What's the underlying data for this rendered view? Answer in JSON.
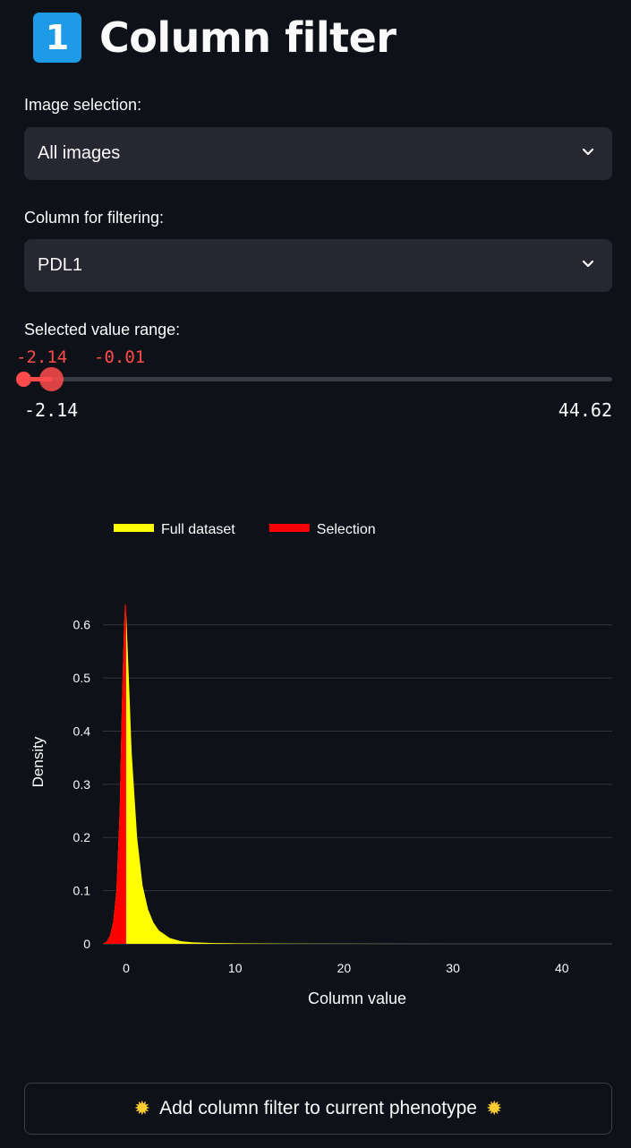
{
  "header": {
    "badge": "1",
    "title": "Column filter"
  },
  "image_selection": {
    "label": "Image selection:",
    "value": "All images"
  },
  "column_selection": {
    "label": "Column for filtering:",
    "value": "PDL1"
  },
  "range_slider": {
    "label": "Selected value range:",
    "low": -2.14,
    "high": -0.01,
    "low_label": "-2.14",
    "high_label": "-0.01",
    "min": -2.14,
    "max": 44.62,
    "min_label": "-2.14",
    "max_label": "44.62",
    "accent_color": "#ff4b4b"
  },
  "chart_data": {
    "type": "area",
    "xlabel": "Column value",
    "ylabel": "Density",
    "xlim": [
      -2.14,
      44.62
    ],
    "ylim": [
      0,
      0.65
    ],
    "xticks": [
      0,
      10,
      20,
      30,
      40
    ],
    "xtick_labels": [
      "0",
      "10",
      "20",
      "30",
      "40"
    ],
    "yticks": [
      0,
      0.1,
      0.2,
      0.3,
      0.4,
      0.5,
      0.6
    ],
    "ytick_labels": [
      "0",
      "0.1",
      "0.2",
      "0.3",
      "0.4",
      "0.5",
      "0.6"
    ],
    "grid": true,
    "legend_position": "top-left",
    "series": [
      {
        "name": "Full dataset",
        "color": "#ffff00",
        "x": [
          -2.14,
          -1.8,
          -1.5,
          -1.2,
          -0.9,
          -0.6,
          -0.4,
          -0.2,
          -0.1,
          0.0,
          0.2,
          0.5,
          1.0,
          1.5,
          2.0,
          2.5,
          3.0,
          4.0,
          5.0,
          6.0,
          8.0,
          10.0,
          15.0,
          20.0,
          30.0,
          44.62
        ],
        "values": [
          0,
          0.004,
          0.015,
          0.04,
          0.1,
          0.25,
          0.45,
          0.6,
          0.64,
          0.62,
          0.52,
          0.36,
          0.2,
          0.11,
          0.065,
          0.04,
          0.025,
          0.011,
          0.005,
          0.003,
          0.0015,
          0.001,
          0.0005,
          0.0002,
          0.0001,
          0
        ]
      },
      {
        "name": "Selection",
        "color": "#ff0000",
        "x": [
          -2.14,
          -1.8,
          -1.5,
          -1.2,
          -0.9,
          -0.6,
          -0.4,
          -0.2,
          -0.1,
          -0.01
        ],
        "values": [
          0,
          0.004,
          0.015,
          0.04,
          0.1,
          0.25,
          0.45,
          0.6,
          0.64,
          0.635
        ]
      }
    ]
  },
  "add_button": {
    "label": "Add column filter to current phenotype",
    "icon": "glowing-star-icon"
  },
  "colors": {
    "background": "#0e1117",
    "select_background": "#262730",
    "badge": "#1e9be6"
  }
}
